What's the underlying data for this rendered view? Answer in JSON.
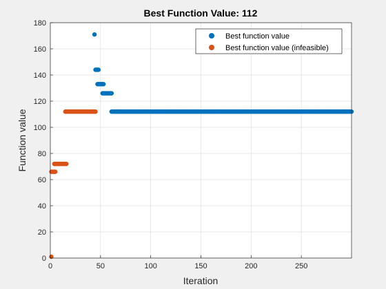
{
  "chart_data": {
    "type": "scatter",
    "title": "Best Function Value: 112",
    "xlabel": "Iteration",
    "ylabel": "Function value",
    "xlim": [
      0,
      300
    ],
    "ylim": [
      0,
      180
    ],
    "xticks": [
      0,
      50,
      100,
      150,
      200,
      250
    ],
    "yticks": [
      0,
      20,
      40,
      60,
      80,
      100,
      120,
      140,
      160,
      180
    ],
    "grid": true,
    "legend_position": "top-right",
    "series": [
      {
        "name": "Best function value",
        "color": "#0072BD",
        "segments": [
          {
            "x_start": 44,
            "x_end": 44,
            "y": 171
          },
          {
            "x_start": 45,
            "x_end": 48,
            "y": 144
          },
          {
            "x_start": 47,
            "x_end": 53,
            "y": 133
          },
          {
            "x_start": 52,
            "x_end": 61,
            "y": 126
          },
          {
            "x_start": 61,
            "x_end": 300,
            "y": 112
          }
        ]
      },
      {
        "name": "Best function value (infeasible)",
        "color": "#D95319",
        "segments": [
          {
            "x_start": 1,
            "x_end": 1,
            "y": 1
          },
          {
            "x_start": 1,
            "x_end": 5,
            "y": 66
          },
          {
            "x_start": 4,
            "x_end": 16,
            "y": 72
          },
          {
            "x_start": 15,
            "x_end": 45,
            "y": 112
          }
        ]
      }
    ]
  }
}
